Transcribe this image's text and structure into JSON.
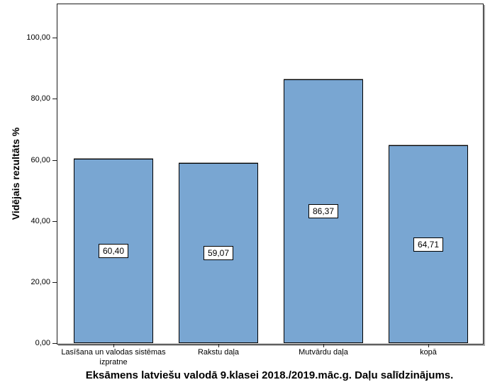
{
  "chart_data": {
    "type": "bar",
    "categories": [
      "Lasīšana un valodas sistēmas\nizpratne",
      "Rakstu daļa",
      "Mutvārdu daļa",
      "kopā"
    ],
    "values": [
      60.4,
      59.07,
      86.37,
      64.71
    ],
    "value_labels": [
      "60,40",
      "59,07",
      "86,37",
      "64,71"
    ],
    "title": "Eksāmens latviešu valodā 9.klasei 2018./2019.māc.g. Daļu salīdzinājums.",
    "xlabel": "",
    "ylabel": "Vidējais rezultāts %",
    "ylim": [
      0,
      111.2
    ],
    "yticks": [
      0,
      20,
      40,
      60,
      80,
      100
    ],
    "ytick_labels": [
      "0,00",
      "20,00",
      "40,00",
      "60,00",
      "80,00",
      "100,00"
    ],
    "bar_color": "#79A6D2",
    "bar_border_color": "#000000",
    "grid": false,
    "legend": null
  }
}
